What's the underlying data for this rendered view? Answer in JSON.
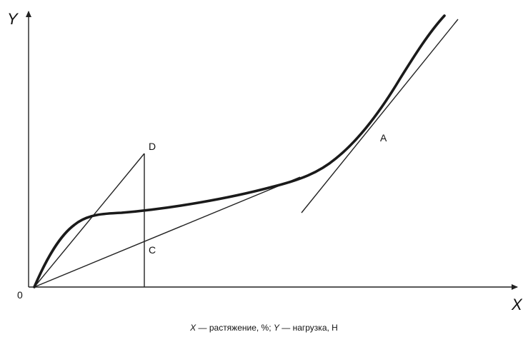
{
  "labels": {
    "y_axis": "Y",
    "x_axis": "X",
    "origin": "0",
    "point_a": "A",
    "point_c": "C",
    "point_d": "D"
  },
  "caption": {
    "x_sym": "X",
    "x_text": " — растяжение, %; ",
    "y_sym": "Y",
    "y_text": " — нагрузка, Н"
  }
}
